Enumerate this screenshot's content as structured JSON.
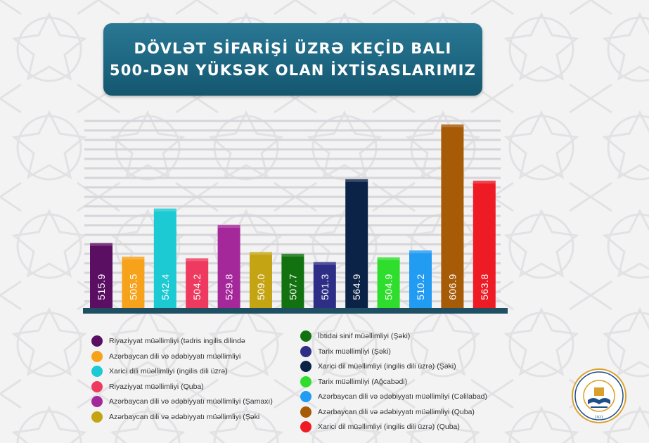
{
  "title": {
    "line1": "DÖVLƏT SİFARİŞİ ÜZRƏ KEÇİD BALI",
    "line2": "500-DƏN YÜKSƏK OLAN İXTİSASLARIMIZ"
  },
  "chart_data": {
    "type": "bar",
    "title": "DÖVLƏT SİFARİŞİ ÜZRƏ KEÇİD BALI 500-DƏN YÜKSƏK OLAN İXTİSASLARIMIZ",
    "xlabel": "",
    "ylabel": "",
    "ylim": [
      465,
      615
    ],
    "grid": true,
    "legend_placement": "bottom",
    "categories": [
      "Riyaziyyat müəllimliyi (tədris ingilis dilində",
      "Azərbaycan dili və ədəbiyyatı müəllimliyi",
      "Xarici dili müəllimliyi (ingilis dili üzrə)",
      "Riyaziyyat müəllimliyi (Quba)",
      "Azərbaycan dili və ədəbiyyatı müəllimliyi (Şamaxı)",
      "Azərbaycan dili və ədəbiyyatı müəllimliyi (Şəki",
      "İbtidai sinif müəllimliyi (Şəki)",
      "Tarix müəllimliyi (Şəki)",
      "Xarici dil müəllimliyi (ingilis dili üzrə) (Şəki)",
      "Tarix müəllimliyi (Ağcabədi)",
      "Azərbaycan dili və ədəbiyyatı müəllimliyi (Cəlilabad)",
      "Azərbaycan dili və ədəbiyyatı müəllimliyi (Quba)",
      "Xarici dil müəllimliyi (ingilis dili üzrə) (Quba)"
    ],
    "values": [
      515.9,
      505.5,
      542.4,
      504.2,
      529.8,
      509.0,
      507.7,
      501.3,
      564.9,
      504.9,
      510.2,
      606.9,
      563.8
    ],
    "value_labels": [
      "515.9",
      "505.5",
      "542.4",
      "504.2",
      "529.8",
      "509.0",
      "507.7",
      "501.3",
      "564.9",
      "504.9",
      "510.2",
      "606.9",
      "563.8"
    ],
    "colors": [
      "#5b0f63",
      "#f7a21b",
      "#1ccad3",
      "#ee3a5e",
      "#a5289a",
      "#c4a413",
      "#11720f",
      "#2d2e86",
      "#0b2346",
      "#2fde2d",
      "#229cf2",
      "#a75b07",
      "#ee1b24"
    ]
  },
  "seal": {
    "text": "AZƏRBAYCAN DÖVLƏT PEDAQOJİ UNİVERSİTETİ",
    "year": "1921"
  }
}
